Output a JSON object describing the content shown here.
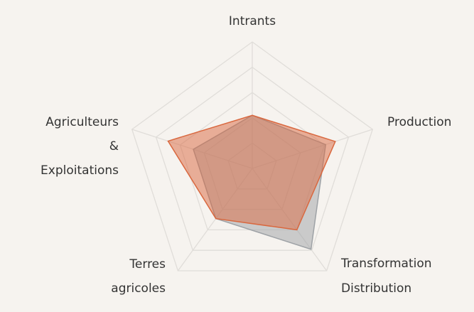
{
  "chart_data": {
    "type": "radar",
    "categories": [
      [
        "Intrants"
      ],
      [
        "Production"
      ],
      [
        "Transformation",
        "Distribution"
      ],
      [
        "Terres",
        "agricoles"
      ],
      [
        "Agriculteurs",
        "&",
        "Exploitations"
      ]
    ],
    "series": [
      {
        "color": "#9ea2a6",
        "values": [
          42,
          61,
          79,
          49,
          49
        ]
      },
      {
        "color": "#d9683f",
        "values": [
          42,
          69,
          60,
          49,
          70
        ]
      }
    ],
    "rlim": [
      0,
      100
    ],
    "rticks": [
      20,
      40,
      60,
      80,
      100
    ],
    "grid": true
  }
}
